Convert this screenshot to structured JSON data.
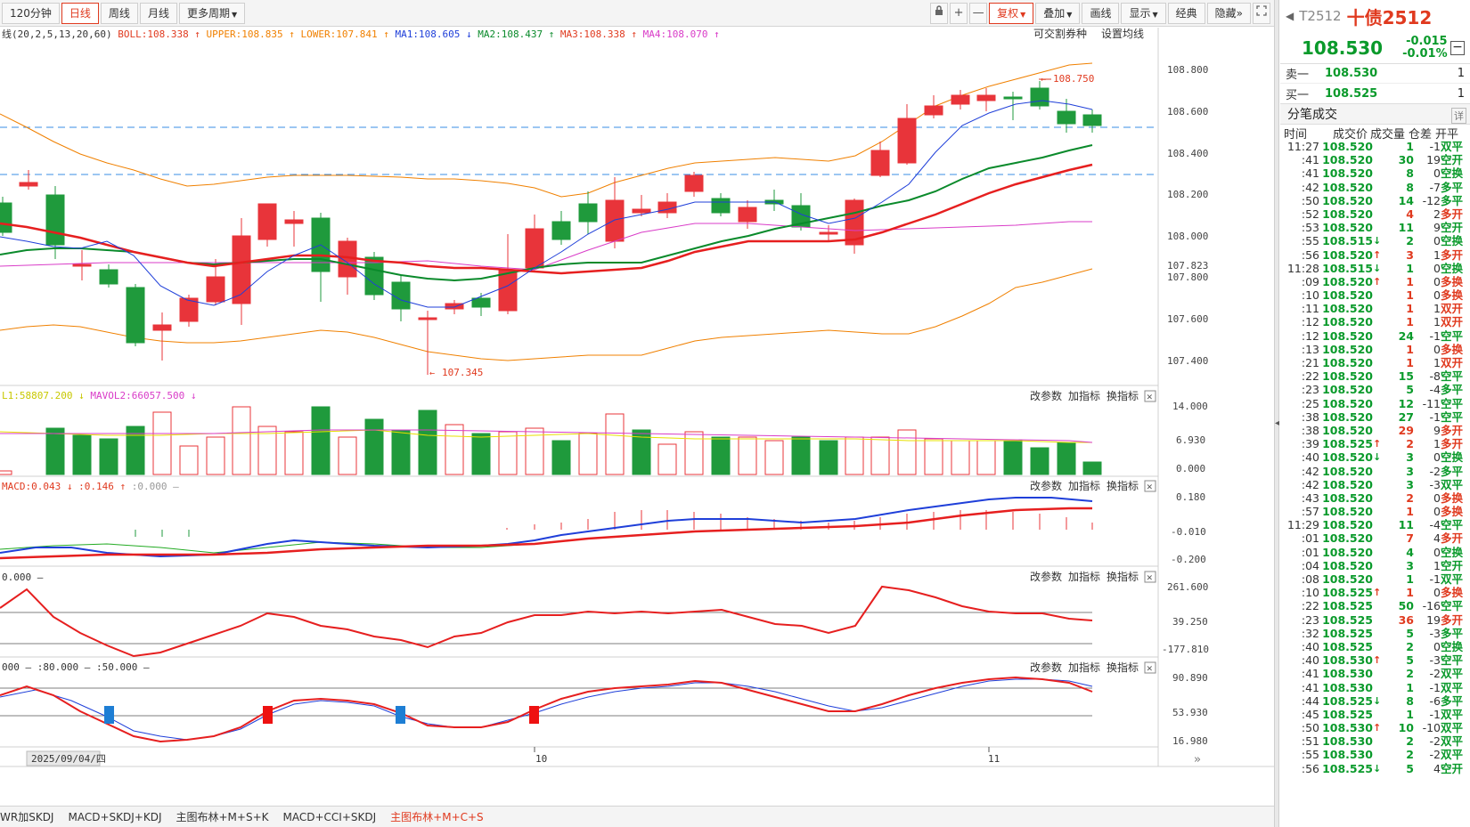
{
  "toolbar": {
    "periods": [
      "120分钟",
      "日线",
      "周线",
      "月线",
      "更多周期"
    ],
    "right_buttons": {
      "lock": "lock-icon",
      "plus": "+",
      "minus": "—",
      "fuquan": "复权",
      "diejia": "叠加",
      "huaxian": "画线",
      "xianshi": "显示",
      "jingdian": "经典",
      "yincang": "隐藏",
      "collapse": "»"
    }
  },
  "main_chart": {
    "indicator_line": [
      {
        "text": "线(20,2,5,13,20,60)",
        "color": "#333333"
      },
      {
        "text": "BOLL:108.338 ↑",
        "color": "#e03a1f"
      },
      {
        "text": "UPPER:108.835 ↑",
        "color": "#f08000"
      },
      {
        "text": "LOWER:107.841 ↑",
        "color": "#f08000"
      },
      {
        "text": "MA1:108.605 ↓",
        "color": "#1f3fd9"
      },
      {
        "text": "MA2:108.437 ↑",
        "color": "#0a8a2b"
      },
      {
        "text": "MA3:108.338 ↑",
        "color": "#e03a1f"
      },
      {
        "text": "MA4:108.070 ↑",
        "color": "#d93cc8"
      }
    ],
    "right_links": [
      "可交割券种",
      "设置均线"
    ],
    "y_ticks": [
      "108.800",
      "108.600",
      "108.400",
      "108.200",
      "108.000",
      "107.823",
      "107.800",
      "107.600",
      "107.400"
    ],
    "high_label": "108.750",
    "low_label": "107.345"
  },
  "panes": {
    "actions": [
      "改参数",
      "加指标",
      "换指标"
    ],
    "vol": {
      "legend": [
        {
          "text": "L1:58807.200 ↓",
          "color": "#c8c800"
        },
        {
          "text": "MAVOL2:66057.500 ↓",
          "color": "#d93cc8"
        }
      ],
      "y_ticks": [
        "14.000",
        "6.930",
        "0.000"
      ]
    },
    "macd": {
      "legend": [
        {
          "text": "MACD:0.043 ↓",
          "color": "#e03a1f"
        },
        {
          "text": ":0.146 ↑",
          "color": "#e03a1f"
        },
        {
          "text": ":0.000 –",
          "color": "#999999"
        }
      ],
      "y_ticks": [
        "0.180",
        "-0.010",
        "-0.200"
      ]
    },
    "cci": {
      "legend": [
        {
          "text": "0.000 –",
          "color": "#333333"
        }
      ],
      "y_ticks": [
        "261.600",
        "39.250",
        "-177.810"
      ]
    },
    "kdj": {
      "legend": [
        {
          "text": "000 – :80.000 – :50.000 –",
          "color": "#333333"
        }
      ],
      "y_ticks": [
        "90.890",
        "53.930",
        "16.980"
      ]
    }
  },
  "xaxis": {
    "date_label": "2025/09/04/四",
    "labels": [
      "10",
      "11"
    ]
  },
  "bottom_tabs": [
    "WR加SKDJ",
    "MACD+SKDJ+KDJ",
    "主图布林+M+S+K",
    "MACD+CCI+SKDJ",
    "主图布林+M+C+S"
  ],
  "side": {
    "code": "T2512",
    "name": "十债2512",
    "price": "108.530",
    "change": "-0.015",
    "pct": "-0.01%",
    "sell": {
      "label": "卖一",
      "price": "108.530",
      "vol": "1"
    },
    "buy": {
      "label": "买一",
      "price": "108.525",
      "vol": "1"
    },
    "ticks_title": "分笔成交",
    "detail": "详",
    "cols": [
      "时间",
      "成交价",
      "成交量",
      "仓差",
      "开平"
    ],
    "ticks": [
      [
        "11:27",
        "108.520",
        "",
        "1",
        "-1",
        "双平",
        "g"
      ],
      [
        ":41",
        "108.520",
        "",
        "30",
        "19",
        "空开",
        "g"
      ],
      [
        ":41",
        "108.520",
        "",
        "8",
        "0",
        "空换",
        "g"
      ],
      [
        ":42",
        "108.520",
        "",
        "8",
        "-7",
        "多平",
        "g"
      ],
      [
        ":50",
        "108.520",
        "",
        "14",
        "-12",
        "多平",
        "g"
      ],
      [
        ":52",
        "108.520",
        "",
        "4",
        "2",
        "多开",
        "r"
      ],
      [
        ":53",
        "108.520",
        "",
        "11",
        "9",
        "空开",
        "g"
      ],
      [
        ":55",
        "108.515",
        "↓",
        "2",
        "0",
        "空换",
        "g"
      ],
      [
        ":56",
        "108.520",
        "↑",
        "3",
        "1",
        "多开",
        "r"
      ],
      [
        "11:28",
        "108.515",
        "↓",
        "1",
        "0",
        "空换",
        "g"
      ],
      [
        ":09",
        "108.520",
        "↑",
        "1",
        "0",
        "多换",
        "r"
      ],
      [
        ":10",
        "108.520",
        "",
        "1",
        "0",
        "多换",
        "r"
      ],
      [
        ":11",
        "108.520",
        "",
        "1",
        "1",
        "双开",
        "r"
      ],
      [
        ":12",
        "108.520",
        "",
        "1",
        "1",
        "双开",
        "r"
      ],
      [
        ":12",
        "108.520",
        "",
        "24",
        "-1",
        "空平",
        "g"
      ],
      [
        ":13",
        "108.520",
        "",
        "1",
        "0",
        "多换",
        "r"
      ],
      [
        ":21",
        "108.520",
        "",
        "1",
        "1",
        "双开",
        "r"
      ],
      [
        ":22",
        "108.520",
        "",
        "15",
        "-8",
        "空平",
        "g"
      ],
      [
        ":23",
        "108.520",
        "",
        "5",
        "-4",
        "多平",
        "g"
      ],
      [
        ":25",
        "108.520",
        "",
        "12",
        "-11",
        "空平",
        "g"
      ],
      [
        ":38",
        "108.520",
        "",
        "27",
        "-1",
        "空平",
        "g"
      ],
      [
        ":38",
        "108.520",
        "",
        "29",
        "9",
        "多开",
        "r"
      ],
      [
        ":39",
        "108.525",
        "↑",
        "2",
        "1",
        "多开",
        "r"
      ],
      [
        ":40",
        "108.520",
        "↓",
        "3",
        "0",
        "空换",
        "g"
      ],
      [
        ":42",
        "108.520",
        "",
        "3",
        "-2",
        "多平",
        "g"
      ],
      [
        ":42",
        "108.520",
        "",
        "3",
        "-3",
        "双平",
        "g"
      ],
      [
        ":43",
        "108.520",
        "",
        "2",
        "0",
        "多换",
        "r"
      ],
      [
        ":57",
        "108.520",
        "",
        "1",
        "0",
        "多换",
        "r"
      ],
      [
        "11:29",
        "108.520",
        "",
        "11",
        "-4",
        "空平",
        "g"
      ],
      [
        ":01",
        "108.520",
        "",
        "7",
        "4",
        "多开",
        "r"
      ],
      [
        ":01",
        "108.520",
        "",
        "4",
        "0",
        "空换",
        "g"
      ],
      [
        ":04",
        "108.520",
        "",
        "3",
        "1",
        "空开",
        "g"
      ],
      [
        ":08",
        "108.520",
        "",
        "1",
        "-1",
        "双平",
        "g"
      ],
      [
        ":10",
        "108.525",
        "↑",
        "1",
        "0",
        "多换",
        "r"
      ],
      [
        ":22",
        "108.525",
        "",
        "50",
        "-16",
        "空平",
        "g"
      ],
      [
        ":23",
        "108.525",
        "",
        "36",
        "19",
        "多开",
        "r"
      ],
      [
        ":32",
        "108.525",
        "",
        "5",
        "-3",
        "多平",
        "g"
      ],
      [
        ":40",
        "108.525",
        "",
        "2",
        "0",
        "空换",
        "g"
      ],
      [
        ":40",
        "108.530",
        "↑",
        "5",
        "-3",
        "空平",
        "g"
      ],
      [
        ":41",
        "108.530",
        "",
        "2",
        "-2",
        "双平",
        "g"
      ],
      [
        ":41",
        "108.530",
        "",
        "1",
        "-1",
        "双平",
        "g"
      ],
      [
        ":44",
        "108.525",
        "↓",
        "8",
        "-6",
        "多平",
        "g"
      ],
      [
        ":45",
        "108.525",
        "",
        "1",
        "-1",
        "双平",
        "g"
      ],
      [
        ":50",
        "108.530",
        "↑",
        "10",
        "-10",
        "双平",
        "g"
      ],
      [
        ":51",
        "108.530",
        "",
        "2",
        "-2",
        "双平",
        "g"
      ],
      [
        ":55",
        "108.530",
        "",
        "2",
        "-2",
        "双平",
        "g"
      ],
      [
        ":56",
        "108.525",
        "↓",
        "5",
        "4",
        "空开",
        "g"
      ]
    ]
  },
  "colors": {
    "up": "#e8343a",
    "down": "#1f9a3c",
    "price_green": "#0a9a2b",
    "accent": "#e03a1f"
  }
}
